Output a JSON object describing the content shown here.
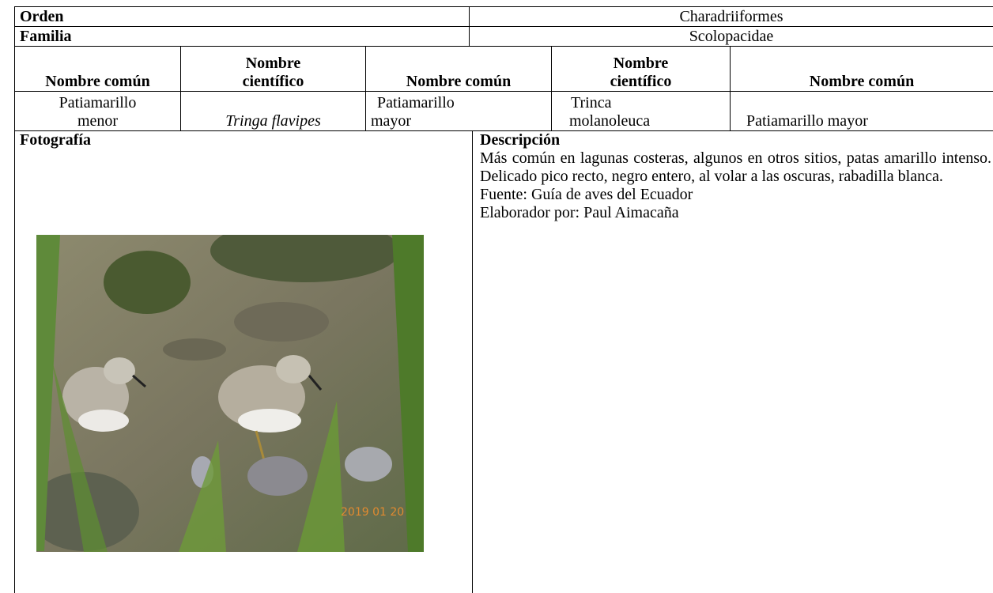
{
  "header_rows": [
    {
      "label": "Orden",
      "value": "Charadriiformes"
    },
    {
      "label": "Familia",
      "value": "Scolopacidae"
    }
  ],
  "species_table": {
    "headers": [
      "Nombre común",
      "Nombre científico",
      "Nombre común",
      "Nombre científico",
      "Nombre común"
    ],
    "row": [
      "Patiamarillo menor",
      "Tringa flavipes",
      "Patiamarillo mayor",
      "Trinca molanoleuca",
      "Patiamarillo mayor"
    ]
  },
  "photo": {
    "label": "Fotografía",
    "stamp": "2019 01 20"
  },
  "description": {
    "label": "Descripción",
    "text": "Más común en lagunas costeras, algunos en otros sitios, patas amarillo intenso. Delicado pico recto, negro entero, al volar a las oscuras, rabadilla blanca.",
    "source": "Fuente: Guía de aves del Ecuador",
    "author": "Elaborador por: Paul Aimacaña"
  }
}
